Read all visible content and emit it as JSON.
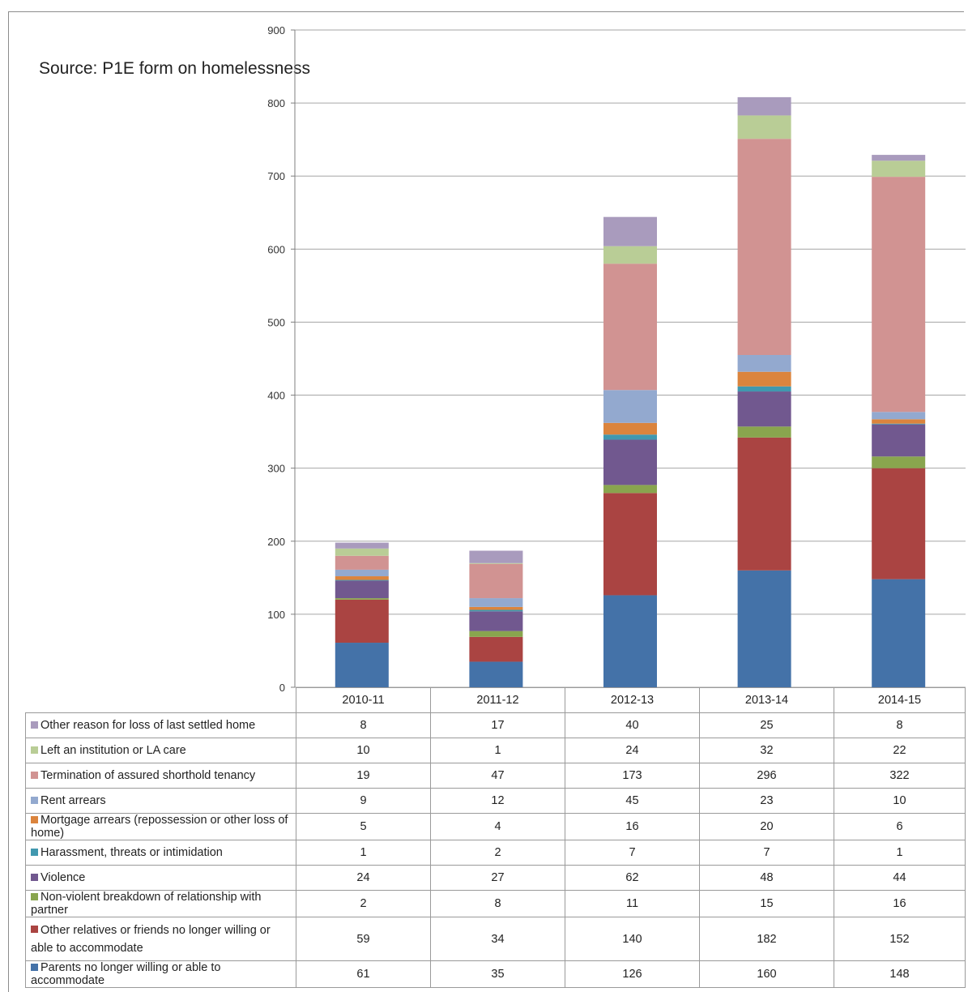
{
  "source_note": "Source: P1E form on homelessness",
  "chart_data": {
    "type": "bar",
    "stacked": true,
    "categories": [
      "2010-11",
      "2011-12",
      "2012-13",
      "2013-14",
      "2014-15"
    ],
    "ylim": [
      0,
      900
    ],
    "yticks": [
      "0",
      "100",
      "200",
      "300",
      "400",
      "500",
      "600",
      "700",
      "800",
      "900"
    ],
    "grid": true,
    "legend": "table-below",
    "series": [
      {
        "name": "Parents no longer willing or able to accommodate",
        "color": "#4472a8",
        "values": [
          61,
          35,
          126,
          160,
          148
        ]
      },
      {
        "name": "Other relatives or friends no longer willing or able to accommodate",
        "color": "#aa4442",
        "values": [
          59,
          34,
          140,
          182,
          152
        ]
      },
      {
        "name": "Non-violent breakdown of relationship with partner",
        "color": "#89a54e",
        "values": [
          2,
          8,
          11,
          15,
          16
        ]
      },
      {
        "name": "Violence",
        "color": "#71588f",
        "values": [
          24,
          27,
          62,
          48,
          44
        ]
      },
      {
        "name": "Harassment, threats or intimidation",
        "color": "#4198af",
        "values": [
          1,
          2,
          7,
          7,
          1
        ]
      },
      {
        "name": "Mortgage arrears (repossession or other loss of home)",
        "color": "#db843d",
        "values": [
          5,
          4,
          16,
          20,
          6
        ]
      },
      {
        "name": "Rent arrears",
        "color": "#93a9cf",
        "values": [
          9,
          12,
          45,
          23,
          10
        ]
      },
      {
        "name": "Termination of assured shorthold tenancy",
        "color": "#d19392",
        "values": [
          19,
          47,
          173,
          296,
          322
        ]
      },
      {
        "name": "Left an institution or LA care",
        "color": "#b9cd96",
        "values": [
          10,
          1,
          24,
          32,
          22
        ]
      },
      {
        "name": "Other reason for loss of last settled home",
        "color": "#a99bbd",
        "values": [
          8,
          17,
          40,
          25,
          8
        ]
      }
    ]
  }
}
